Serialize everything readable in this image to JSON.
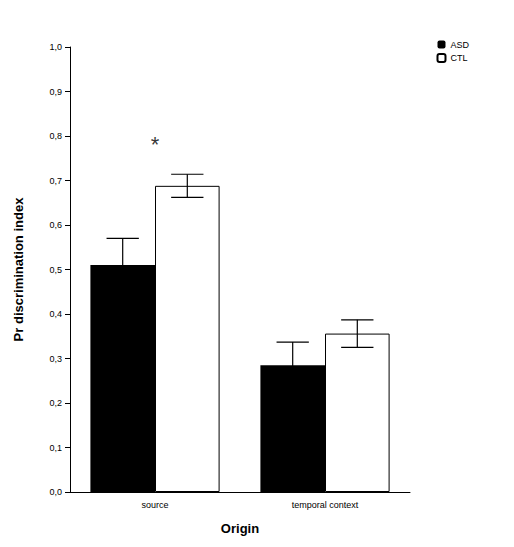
{
  "chart_data": {
    "type": "bar",
    "x_label": "Origin",
    "y_label": "Pr discrimination index",
    "categories": [
      "source",
      "temporal context"
    ],
    "series": [
      {
        "name": "ASD",
        "color": "#000000",
        "values": [
          0.51,
          0.285
        ],
        "errors": [
          0.06,
          0.052
        ]
      },
      {
        "name": "CTL",
        "color": "#ffffff",
        "values": [
          0.688,
          0.356
        ],
        "errors": [
          0.026,
          0.031
        ]
      }
    ],
    "ylim": [
      0,
      1
    ],
    "yticks": [
      {
        "value": 0,
        "label": "0,0"
      },
      {
        "value": 0.1,
        "label": "0,1"
      },
      {
        "value": 0.2,
        "label": "0,2"
      },
      {
        "value": 0.3,
        "label": "0,3"
      },
      {
        "value": 0.4,
        "label": "0,4"
      },
      {
        "value": 0.5,
        "label": "0,5"
      },
      {
        "value": 0.6,
        "label": "0,6"
      },
      {
        "value": 0.7,
        "label": "0,7"
      },
      {
        "value": 0.8,
        "label": "0,8"
      },
      {
        "value": 0.9,
        "label": "0,9"
      },
      {
        "value": 1,
        "label": "1,0"
      }
    ],
    "annotations": [
      {
        "text": "*",
        "x": "source",
        "y": 0.78
      }
    ],
    "grid": false,
    "legend": "top-right"
  }
}
